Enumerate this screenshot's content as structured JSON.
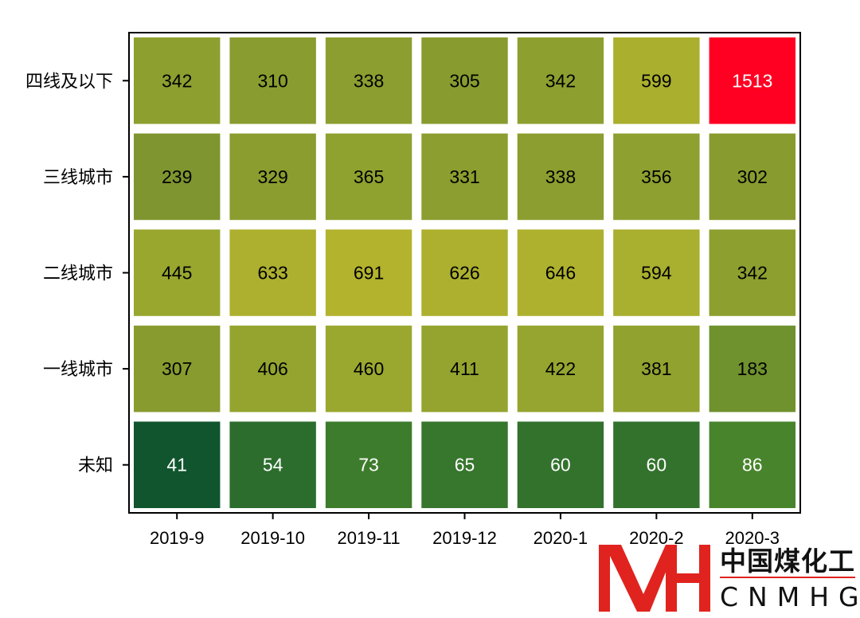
{
  "chart_data": {
    "type": "heatmap",
    "title": "",
    "xlabel": "",
    "ylabel": "",
    "x": [
      "2019-9",
      "2019-10",
      "2019-11",
      "2019-12",
      "2020-1",
      "2020-2",
      "2020-3"
    ],
    "y": [
      "四线及以下",
      "三线城市",
      "二线城市",
      "一线城市",
      "未知"
    ],
    "values": [
      [
        342,
        310,
        338,
        305,
        342,
        599,
        1513
      ],
      [
        239,
        329,
        365,
        331,
        338,
        356,
        302
      ],
      [
        445,
        633,
        691,
        626,
        646,
        594,
        342
      ],
      [
        307,
        406,
        460,
        411,
        422,
        381,
        183
      ],
      [
        41,
        54,
        73,
        65,
        60,
        60,
        86
      ]
    ],
    "colormap": [
      "#10552e",
      "#4f8a2c",
      "#7f952f",
      "#9aa82f",
      "#b8b52e",
      "#e6c62c",
      "#ff0022"
    ],
    "grid": false,
    "legend": "none"
  },
  "watermark": {
    "chinese": "中国煤化工",
    "english": "CNMHG",
    "brand_color": "#e0231e"
  }
}
